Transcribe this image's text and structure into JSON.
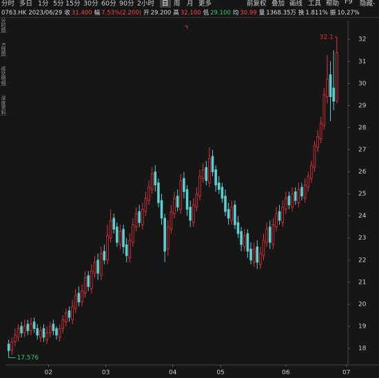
{
  "toolbar": [
    "分时",
    "多日",
    "1分",
    "5分",
    "15分",
    "30分",
    "60分",
    "90分",
    "2小时",
    "日",
    "周",
    "月",
    "更多",
    "前复权",
    "叠加",
    "画线",
    "工具",
    "帮助",
    "F9",
    "隐藏-"
  ],
  "sidebar": [
    "分时图",
    "K线图",
    "成交明细",
    "深度资料"
  ],
  "info": {
    "code": "0763.HK",
    "date": "2023/06/29",
    "fields": [
      {
        "label": "收",
        "value": "31.400",
        "color": "#ff4444"
      },
      {
        "label": "幅",
        "value": "7.53%(2.200)",
        "color": "#ff4444"
      },
      {
        "label": "开",
        "value": "29.200",
        "color": "#dddddd"
      },
      {
        "label": "高",
        "value": "32.100",
        "color": "#ff4444"
      },
      {
        "label": "低",
        "value": "29.100",
        "color": "#33cc66"
      },
      {
        "label": "均",
        "value": "30.99",
        "color": "#ff4444"
      },
      {
        "label": "量",
        "value": "1368.35万",
        "color": "#dddddd"
      },
      {
        "label": "换",
        "value": "1.811%",
        "color": "#dddddd"
      },
      {
        "label": "振",
        "value": "10.27%",
        "color": "#dddddd"
      }
    ]
  },
  "chart_data": {
    "type": "candlestick",
    "up_color": "#e8333c",
    "down_color": "#5ccfd0",
    "open": [
      18.2,
      17.9,
      18.3,
      18.5,
      19.0,
      18.7,
      19.1,
      18.8,
      19.2,
      18.9,
      18.5,
      18.9,
      18.4,
      18.7,
      19.1,
      18.9,
      18.5,
      18.9,
      19.2,
      19.7,
      19.3,
      19.8,
      20.5,
      20.1,
      20.5,
      21.3,
      20.7,
      21.4,
      22.0,
      21.3,
      22.4,
      22.0,
      23.0,
      23.9,
      23.5,
      22.7,
      23.4,
      22.7,
      22.1,
      22.8,
      23.5,
      24.2,
      23.6,
      24.2,
      24.7,
      25.2,
      26.0,
      25.5,
      24.7,
      23.9,
      22.5,
      23.4,
      24.1,
      24.9,
      24.3,
      25.7,
      25.2,
      24.4,
      23.7,
      24.4,
      24.9,
      25.7,
      26.2,
      25.5,
      26.7,
      26.1,
      25.5,
      25.3,
      24.9,
      24.3,
      23.8,
      24.5,
      23.7,
      23.3,
      22.6,
      23.2,
      22.5,
      21.9,
      22.6,
      21.8,
      22.2,
      22.8,
      23.5,
      22.7,
      23.5,
      24.2,
      23.7,
      24.3,
      24.9,
      24.4,
      25.1,
      24.6,
      25.3,
      24.8,
      25.3,
      25.7,
      26.2,
      27.1,
      27.5,
      28.1,
      29.4,
      30.4,
      29.8,
      29.2
    ],
    "high": [
      18.4,
      18.5,
      18.9,
      19.1,
      19.2,
      19.3,
      19.3,
      19.4,
      19.4,
      19.1,
      19.0,
      19.1,
      19.0,
      19.2,
      19.3,
      19.0,
      19.1,
      19.5,
      19.8,
      19.9,
      20.2,
      20.7,
      20.8,
      20.9,
      21.5,
      21.5,
      21.8,
      22.2,
      22.3,
      22.6,
      22.7,
      23.6,
      24.3,
      24.1,
      23.7,
      23.6,
      23.6,
      23.0,
      23.2,
      23.9,
      24.4,
      24.5,
      24.6,
      25.1,
      25.6,
      26.2,
      26.3,
      25.7,
      25.0,
      24.1,
      23.8,
      24.5,
      25.1,
      25.2,
      25.9,
      26.0,
      25.4,
      24.7,
      24.8,
      25.3,
      26.1,
      26.4,
      26.5,
      27.1,
      27.0,
      26.3,
      25.8,
      25.5,
      25.2,
      24.6,
      24.7,
      24.7,
      24.0,
      23.5,
      23.4,
      23.4,
      22.8,
      22.8,
      22.9,
      22.6,
      23.2,
      23.7,
      23.8,
      23.9,
      24.4,
      24.5,
      24.7,
      25.1,
      25.1,
      25.3,
      25.3,
      25.5,
      25.5,
      25.7,
      26.0,
      26.5,
      27.4,
      27.9,
      28.5,
      29.8,
      31.3,
      31.0,
      31.5,
      32.1
    ],
    "low": [
      17.576,
      17.7,
      18.1,
      18.3,
      18.5,
      18.5,
      18.6,
      18.6,
      18.7,
      18.4,
      18.3,
      18.3,
      18.2,
      18.5,
      18.6,
      18.4,
      18.3,
      18.7,
      19.0,
      19.2,
      19.1,
      19.6,
      19.9,
      19.9,
      20.3,
      20.6,
      20.5,
      21.2,
      21.1,
      21.1,
      21.8,
      21.8,
      22.8,
      23.2,
      22.6,
      22.5,
      22.3,
      21.9,
      21.9,
      22.6,
      23.3,
      23.5,
      23.4,
      24.0,
      24.5,
      25.0,
      25.1,
      24.4,
      23.6,
      21.9,
      22.2,
      23.2,
      23.9,
      24.2,
      24.1,
      24.8,
      24.0,
      23.5,
      23.5,
      24.2,
      24.7,
      25.5,
      25.4,
      25.3,
      25.8,
      25.1,
      25.0,
      24.6,
      24.0,
      23.6,
      23.6,
      23.4,
      23.0,
      22.4,
      22.4,
      22.1,
      21.8,
      21.7,
      21.6,
      21.6,
      22.0,
      22.6,
      22.5,
      22.5,
      23.3,
      23.6,
      23.5,
      24.1,
      24.3,
      24.2,
      24.5,
      24.4,
      24.7,
      24.6,
      25.1,
      25.5,
      26.0,
      26.9,
      27.3,
      27.9,
      29.1,
      28.3,
      28.8,
      29.1
    ],
    "close": [
      17.9,
      18.3,
      18.6,
      18.9,
      18.7,
      19.0,
      18.8,
      19.1,
      18.9,
      18.6,
      18.8,
      18.5,
      18.7,
      19.0,
      18.8,
      18.6,
      18.9,
      19.3,
      19.6,
      19.4,
      19.9,
      20.4,
      20.1,
      20.6,
      21.2,
      20.8,
      21.5,
      21.9,
      21.4,
      22.3,
      22.0,
      23.1,
      23.8,
      23.4,
      22.8,
      23.3,
      22.6,
      22.2,
      22.9,
      23.6,
      24.1,
      23.7,
      24.3,
      24.8,
      25.3,
      25.9,
      25.4,
      24.6,
      23.9,
      22.4,
      23.5,
      24.2,
      24.8,
      24.4,
      25.6,
      25.1,
      24.3,
      23.8,
      24.5,
      25.0,
      25.8,
      26.1,
      25.6,
      26.6,
      26.0,
      25.4,
      25.2,
      24.8,
      24.2,
      23.9,
      24.4,
      23.6,
      23.2,
      22.7,
      23.1,
      22.4,
      22.0,
      22.5,
      21.9,
      22.3,
      22.9,
      23.4,
      22.8,
      23.6,
      24.1,
      23.8,
      24.4,
      24.8,
      24.5,
      25.0,
      24.7,
      25.2,
      24.9,
      25.4,
      25.8,
      26.3,
      27.2,
      27.6,
      28.2,
      29.5,
      30.2,
      29.4,
      29.2,
      31.4
    ],
    "xlim": [
      -1,
      106.5
    ],
    "xticks": [
      {
        "value": 12.5,
        "label": "02"
      },
      {
        "value": 30.5,
        "label": "03"
      },
      {
        "value": 51.5,
        "label": "04"
      },
      {
        "value": 66.5,
        "label": "05"
      },
      {
        "value": 87,
        "label": "06"
      },
      {
        "value": 106,
        "label": "07"
      }
    ],
    "ylim": [
      17.25,
      32.85
    ],
    "yticks": [
      18,
      19,
      20,
      21,
      22,
      23,
      24,
      25,
      26,
      27,
      28,
      29,
      30,
      31,
      32
    ]
  }
}
